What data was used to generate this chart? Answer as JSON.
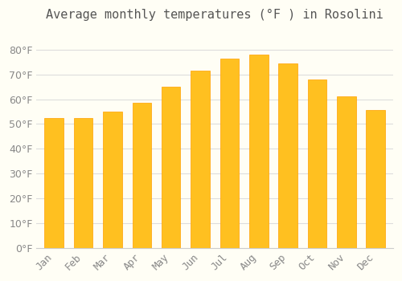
{
  "title": "Average monthly temperatures (°F ) in Rosolini",
  "months": [
    "Jan",
    "Feb",
    "Mar",
    "Apr",
    "May",
    "Jun",
    "Jul",
    "Aug",
    "Sep",
    "Oct",
    "Nov",
    "Dec"
  ],
  "values": [
    52.5,
    52.5,
    55,
    58.5,
    65,
    71.5,
    76.5,
    78,
    74.5,
    68,
    61,
    55.5
  ],
  "bar_color": "#FFC020",
  "bar_edge_color": "#FFA000",
  "background_color": "#FFFEF5",
  "grid_color": "#DDDDDD",
  "text_color": "#888888",
  "title_color": "#555555",
  "ylim": [
    0,
    88
  ],
  "yticks": [
    0,
    10,
    20,
    30,
    40,
    50,
    60,
    70,
    80
  ],
  "title_fontsize": 11,
  "tick_fontsize": 9
}
